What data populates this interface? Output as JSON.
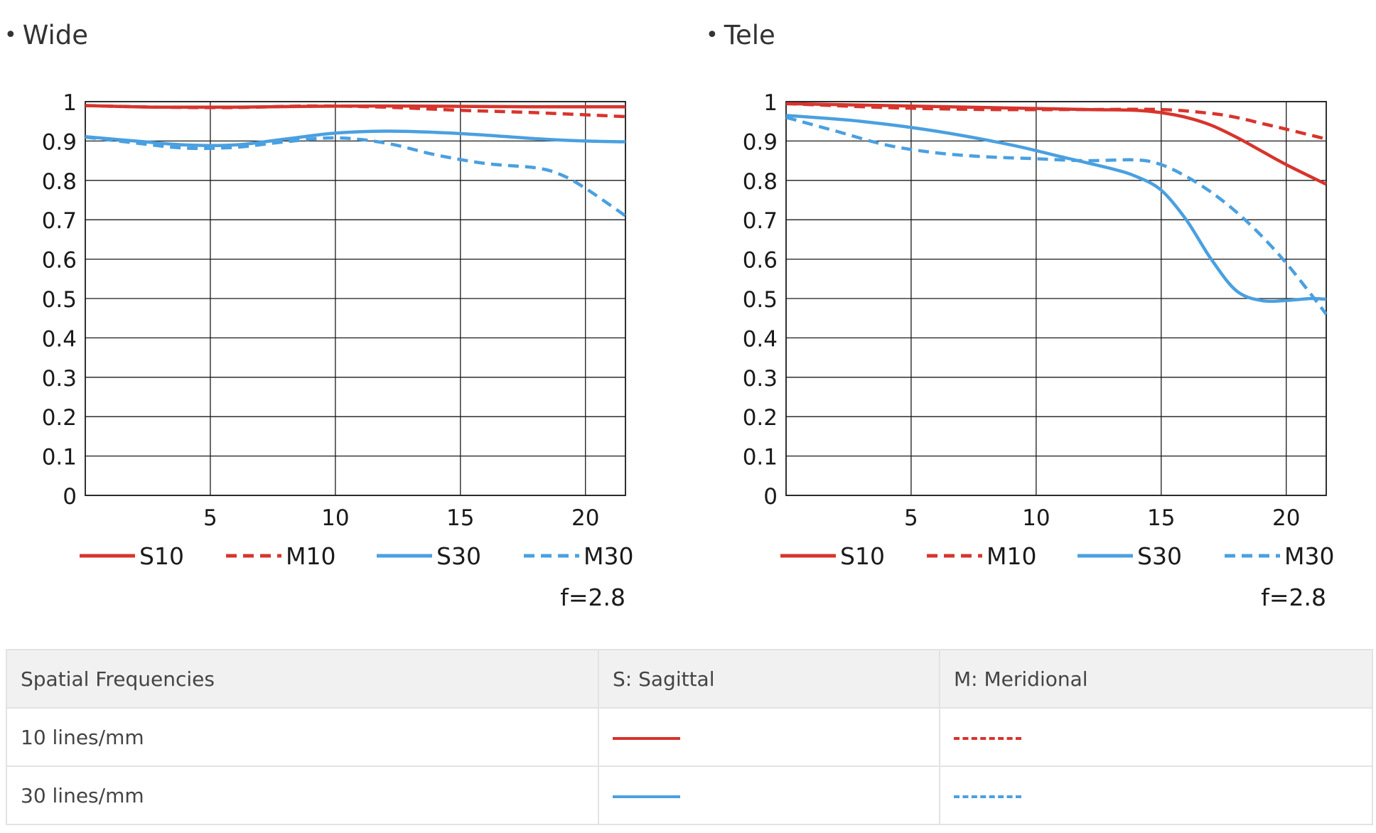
{
  "colors": {
    "red": "#d7342d",
    "blue": "#4aa0e0"
  },
  "charts": [
    {
      "id": "wide",
      "title": "Wide",
      "aperture": "f=2.8",
      "legend": [
        "S10",
        "M10",
        "S30",
        "M30"
      ],
      "x_ticks": [
        "5",
        "10",
        "15",
        "20"
      ],
      "y_ticks": [
        "0",
        "0.1",
        "0.2",
        "0.3",
        "0.4",
        "0.5",
        "0.6",
        "0.7",
        "0.8",
        "0.9",
        "1"
      ]
    },
    {
      "id": "tele",
      "title": "Tele",
      "aperture": "f=2.8",
      "legend": [
        "S10",
        "M10",
        "S30",
        "M30"
      ],
      "x_ticks": [
        "5",
        "10",
        "15",
        "20"
      ],
      "y_ticks": [
        "0",
        "0.1",
        "0.2",
        "0.3",
        "0.4",
        "0.5",
        "0.6",
        "0.7",
        "0.8",
        "0.9",
        "1"
      ]
    }
  ],
  "chart_data": [
    {
      "type": "line",
      "title": "Wide",
      "xlim": [
        0,
        21.6
      ],
      "ylim": [
        0,
        1
      ],
      "x_ticks": [
        5,
        10,
        15,
        20
      ],
      "y_ticks": [
        0,
        0.1,
        0.2,
        0.3,
        0.4,
        0.5,
        0.6,
        0.7,
        0.8,
        0.9,
        1
      ],
      "grid": true,
      "legend_position": "bottom",
      "series": [
        {
          "name": "S10",
          "color": "#d7342d",
          "dashed": false,
          "x": [
            0,
            3,
            6,
            9,
            12,
            15,
            18,
            21.6
          ],
          "y": [
            0.99,
            0.986,
            0.986,
            0.988,
            0.989,
            0.988,
            0.987,
            0.987
          ]
        },
        {
          "name": "M10",
          "color": "#d7342d",
          "dashed": true,
          "x": [
            0,
            3,
            6,
            9,
            12,
            15,
            18,
            21.6
          ],
          "y": [
            0.99,
            0.986,
            0.985,
            0.989,
            0.986,
            0.978,
            0.972,
            0.962
          ]
        },
        {
          "name": "S30",
          "color": "#4aa0e0",
          "dashed": false,
          "x": [
            0,
            2,
            4,
            6,
            8,
            10,
            12,
            14,
            16,
            18,
            20,
            21.6
          ],
          "y": [
            0.911,
            0.9,
            0.89,
            0.89,
            0.905,
            0.92,
            0.925,
            0.922,
            0.915,
            0.906,
            0.9,
            0.898
          ]
        },
        {
          "name": "M30",
          "color": "#4aa0e0",
          "dashed": true,
          "x": [
            0,
            2,
            4,
            6,
            8,
            10,
            12,
            14,
            16,
            18,
            19,
            20,
            21.6
          ],
          "y": [
            0.91,
            0.895,
            0.882,
            0.884,
            0.898,
            0.908,
            0.895,
            0.865,
            0.843,
            0.832,
            0.815,
            0.78,
            0.71
          ]
        }
      ]
    },
    {
      "type": "line",
      "title": "Tele",
      "xlim": [
        0,
        21.6
      ],
      "ylim": [
        0,
        1
      ],
      "x_ticks": [
        5,
        10,
        15,
        20
      ],
      "y_ticks": [
        0,
        0.1,
        0.2,
        0.3,
        0.4,
        0.5,
        0.6,
        0.7,
        0.8,
        0.9,
        1
      ],
      "grid": true,
      "legend_position": "bottom",
      "series": [
        {
          "name": "S10",
          "color": "#d7342d",
          "dashed": false,
          "x": [
            0,
            4,
            8,
            12,
            14,
            15,
            16,
            17,
            18,
            19,
            20,
            21.6
          ],
          "y": [
            0.995,
            0.99,
            0.985,
            0.98,
            0.978,
            0.972,
            0.96,
            0.94,
            0.91,
            0.875,
            0.84,
            0.79
          ]
        },
        {
          "name": "M10",
          "color": "#d7342d",
          "dashed": true,
          "x": [
            0,
            4,
            8,
            12,
            15,
            17,
            18,
            19,
            20,
            21.6
          ],
          "y": [
            0.995,
            0.985,
            0.98,
            0.98,
            0.98,
            0.97,
            0.96,
            0.945,
            0.93,
            0.905
          ]
        },
        {
          "name": "S30",
          "color": "#4aa0e0",
          "dashed": false,
          "x": [
            0,
            3,
            6,
            9,
            11,
            13,
            14,
            15,
            16,
            17,
            18,
            19,
            20,
            21,
            21.6
          ],
          "y": [
            0.965,
            0.95,
            0.925,
            0.89,
            0.86,
            0.83,
            0.81,
            0.775,
            0.7,
            0.6,
            0.52,
            0.495,
            0.495,
            0.5,
            0.498
          ]
        },
        {
          "name": "M30",
          "color": "#4aa0e0",
          "dashed": true,
          "x": [
            0,
            2,
            4,
            6,
            8,
            10,
            12,
            14,
            15,
            16,
            17,
            18,
            19,
            20,
            21,
            21.6
          ],
          "y": [
            0.96,
            0.925,
            0.89,
            0.87,
            0.86,
            0.855,
            0.85,
            0.852,
            0.84,
            0.81,
            0.77,
            0.72,
            0.66,
            0.59,
            0.51,
            0.46
          ]
        }
      ]
    }
  ],
  "table": {
    "headers": [
      "Spatial Frequencies",
      "S: Sagittal",
      "M: Meridional"
    ],
    "rows": [
      {
        "label": "10 lines/mm",
        "sagittal": "S10",
        "meridional": "M10"
      },
      {
        "label": "30 lines/mm",
        "sagittal": "S30",
        "meridional": "M30"
      }
    ]
  }
}
